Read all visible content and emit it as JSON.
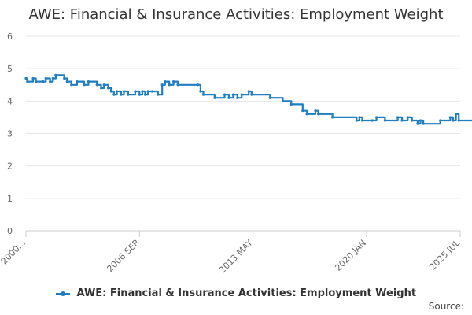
{
  "chart_data": {
    "type": "line",
    "title": "AWE: Financial & Insurance Activities: Employment Weight",
    "ylim": [
      0,
      6
    ],
    "y_ticks": [
      "0",
      "1",
      "2",
      "3",
      "4",
      "5",
      "6"
    ],
    "x_ticks": [
      {
        "label": "2000...",
        "x": "2000-01"
      },
      {
        "label": "2006 SEP",
        "x": "2006-09"
      },
      {
        "label": "2013 MAY",
        "x": "2013-05"
      },
      {
        "label": "2020 JAN",
        "x": "2020-01"
      },
      {
        "label": "2025 JUL",
        "x": "2025-07"
      }
    ],
    "grid": true,
    "legend_position": "bottom",
    "series": [
      {
        "name": "AWE: Financial & Insurance Activities: Employment Weight",
        "color": "#1f7ec0",
        "points": [
          [
            "2000-01",
            4.7
          ],
          [
            "2000-02",
            4.6
          ],
          [
            "2000-06",
            4.7
          ],
          [
            "2000-08",
            4.6
          ],
          [
            "2001-01",
            4.6
          ],
          [
            "2001-03",
            4.7
          ],
          [
            "2001-06",
            4.6
          ],
          [
            "2001-08",
            4.7
          ],
          [
            "2001-10",
            4.8
          ],
          [
            "2002-04",
            4.7
          ],
          [
            "2002-06",
            4.6
          ],
          [
            "2002-09",
            4.5
          ],
          [
            "2003-01",
            4.6
          ],
          [
            "2003-06",
            4.5
          ],
          [
            "2003-09",
            4.6
          ],
          [
            "2004-03",
            4.5
          ],
          [
            "2004-06",
            4.4
          ],
          [
            "2004-08",
            4.5
          ],
          [
            "2004-11",
            4.4
          ],
          [
            "2005-01",
            4.3
          ],
          [
            "2005-03",
            4.2
          ],
          [
            "2005-05",
            4.3
          ],
          [
            "2005-08",
            4.2
          ],
          [
            "2005-10",
            4.3
          ],
          [
            "2006-01",
            4.2
          ],
          [
            "2006-06",
            4.3
          ],
          [
            "2006-09",
            4.2
          ],
          [
            "2006-11",
            4.3
          ],
          [
            "2007-01",
            4.2
          ],
          [
            "2007-03",
            4.3
          ],
          [
            "2007-06",
            4.3
          ],
          [
            "2007-10",
            4.2
          ],
          [
            "2008-01",
            4.5
          ],
          [
            "2008-03",
            4.6
          ],
          [
            "2008-06",
            4.5
          ],
          [
            "2008-09",
            4.6
          ],
          [
            "2008-12",
            4.5
          ],
          [
            "2010-02",
            4.5
          ],
          [
            "2010-04",
            4.3
          ],
          [
            "2010-06",
            4.2
          ],
          [
            "2011-02",
            4.1
          ],
          [
            "2011-09",
            4.2
          ],
          [
            "2011-12",
            4.1
          ],
          [
            "2012-03",
            4.2
          ],
          [
            "2012-06",
            4.1
          ],
          [
            "2012-09",
            4.2
          ],
          [
            "2013-02",
            4.3
          ],
          [
            "2013-04",
            4.2
          ],
          [
            "2014-05",
            4.1
          ],
          [
            "2015-02",
            4.0
          ],
          [
            "2015-08",
            3.9
          ],
          [
            "2016-04",
            3.7
          ],
          [
            "2016-07",
            3.6
          ],
          [
            "2017-01",
            3.7
          ],
          [
            "2017-03",
            3.6
          ],
          [
            "2018-01",
            3.5
          ],
          [
            "2019-06",
            3.4
          ],
          [
            "2019-08",
            3.5
          ],
          [
            "2019-10",
            3.4
          ],
          [
            "2020-05",
            3.4
          ],
          [
            "2020-08",
            3.5
          ],
          [
            "2021-02",
            3.4
          ],
          [
            "2021-11",
            3.5
          ],
          [
            "2022-02",
            3.4
          ],
          [
            "2022-06",
            3.5
          ],
          [
            "2022-09",
            3.4
          ],
          [
            "2023-01",
            3.3
          ],
          [
            "2023-03",
            3.4
          ],
          [
            "2023-05",
            3.3
          ],
          [
            "2024-05",
            3.4
          ],
          [
            "2024-12",
            3.5
          ],
          [
            "2025-02",
            3.4
          ],
          [
            "2025-04",
            3.6
          ],
          [
            "2025-06",
            3.4
          ],
          [
            "2026-04",
            3.4
          ]
        ]
      }
    ],
    "source_label": "Source:"
  }
}
